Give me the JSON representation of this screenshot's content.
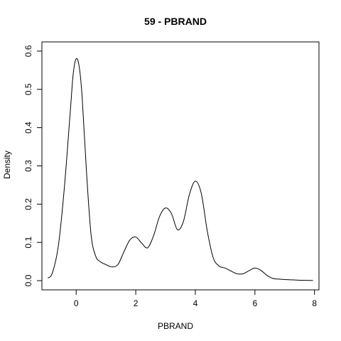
{
  "chart_data": {
    "type": "line",
    "title": "59 - PBRAND",
    "xlabel": "PBRAND",
    "ylabel": "Density",
    "xlim": [
      -1.15,
      8.15
    ],
    "ylim": [
      -0.024,
      0.624
    ],
    "x_ticks": [
      0,
      2,
      4,
      6,
      8
    ],
    "y_ticks": [
      0.0,
      0.1,
      0.2,
      0.3,
      0.4,
      0.5,
      0.6
    ],
    "x_tick_labels": [
      "0",
      "2",
      "4",
      "6",
      "8"
    ],
    "y_tick_labels": [
      "0.0",
      "0.1",
      "0.2",
      "0.3",
      "0.4",
      "0.5",
      "0.6"
    ],
    "grid": false,
    "series": [
      {
        "line_color": "#000000",
        "x": [
          -0.95,
          -0.8,
          -0.6,
          -0.4,
          -0.2,
          -0.1,
          0.0,
          0.1,
          0.2,
          0.35,
          0.5,
          0.65,
          0.8,
          1.0,
          1.2,
          1.4,
          1.6,
          1.8,
          2.0,
          2.2,
          2.4,
          2.6,
          2.8,
          3.0,
          3.2,
          3.4,
          3.6,
          3.8,
          4.0,
          4.2,
          4.4,
          4.6,
          4.8,
          5.0,
          5.2,
          5.4,
          5.6,
          5.8,
          6.0,
          6.2,
          6.4,
          6.6,
          6.8,
          7.0,
          7.3,
          7.6,
          7.95
        ],
        "y": [
          0.007,
          0.02,
          0.09,
          0.24,
          0.44,
          0.54,
          0.58,
          0.56,
          0.48,
          0.28,
          0.12,
          0.065,
          0.05,
          0.042,
          0.036,
          0.042,
          0.075,
          0.106,
          0.114,
          0.098,
          0.086,
          0.118,
          0.168,
          0.19,
          0.175,
          0.133,
          0.155,
          0.225,
          0.26,
          0.228,
          0.13,
          0.06,
          0.038,
          0.033,
          0.025,
          0.018,
          0.018,
          0.026,
          0.033,
          0.027,
          0.014,
          0.006,
          0.004,
          0.003,
          0.002,
          0.001,
          0.0005
        ]
      }
    ]
  }
}
